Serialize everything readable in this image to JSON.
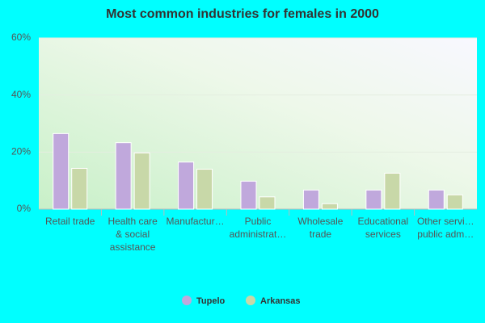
{
  "chart_data": {
    "type": "bar",
    "title": "Most common industries for females in 2000",
    "categories": [
      "Retail trade",
      "Health care\n& social\nassistance",
      "Manufactur…",
      "Public\nadministrat…",
      "Wholesale\ntrade",
      "Educational\nservices",
      "Other servi…\npublic adm…"
    ],
    "series": [
      {
        "name": "Tupelo",
        "color": "#c0a8dc",
        "values": [
          26.5,
          23.3,
          16.5,
          9.8,
          6.7,
          6.7,
          6.7
        ]
      },
      {
        "name": "Arkansas",
        "color": "#c8d8a8",
        "values": [
          14.3,
          19.7,
          14.0,
          4.3,
          1.9,
          12.6,
          5.0
        ]
      }
    ],
    "ylim": [
      0,
      60
    ],
    "yticks": [
      {
        "value": 0,
        "label": "0%"
      },
      {
        "value": 20,
        "label": "20%"
      },
      {
        "value": 40,
        "label": "40%"
      },
      {
        "value": 60,
        "label": "60%"
      }
    ],
    "grid": true
  }
}
